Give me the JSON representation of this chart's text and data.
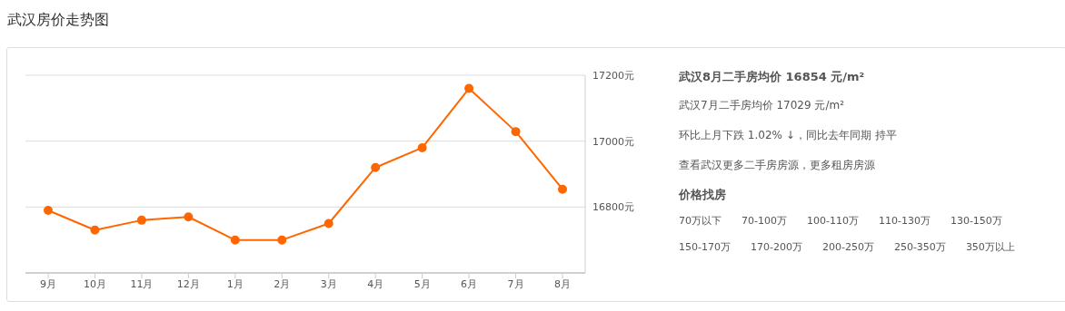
{
  "chart_data": [
    {
      "type": "line",
      "title": "武汉房价走势图",
      "categories": [
        "9月",
        "10月",
        "11月",
        "12月",
        "1月",
        "2月",
        "3月",
        "4月",
        "5月",
        "6月",
        "7月",
        "8月"
      ],
      "series": [
        {
          "color": "#ff6600",
          "values": [
            16790,
            16730,
            16760,
            16770,
            16700,
            16700,
            16750,
            16920,
            16980,
            17160,
            17029,
            16854
          ]
        }
      ],
      "ylim": [
        16600,
        17200
      ],
      "yticks": [
        {
          "value": 16800,
          "label": "16800元"
        },
        {
          "value": 17000,
          "label": "17000元"
        },
        {
          "value": 17200,
          "label": "17200元"
        }
      ],
      "grid": "y",
      "marker": "circle",
      "line_style": "solid"
    },
    {
      "type": "other",
      "title": "武汉8月二手房均价 16854 元/m²",
      "annotations": [
        "武汉7月二手房均价 17029 元/m²",
        "环比上月下跌 1.02% ↓，同比去年同期 持平",
        "查看武汉更多二手房房源，更多租房房源"
      ]
    },
    {
      "type": "other",
      "title": "价格找房",
      "annotations": [
        "70万以下",
        "70-100万",
        "100-110万",
        "110-130万",
        "130-150万",
        "150-170万",
        "170-200万",
        "200-250万",
        "250-350万",
        "350万以上"
      ]
    }
  ]
}
